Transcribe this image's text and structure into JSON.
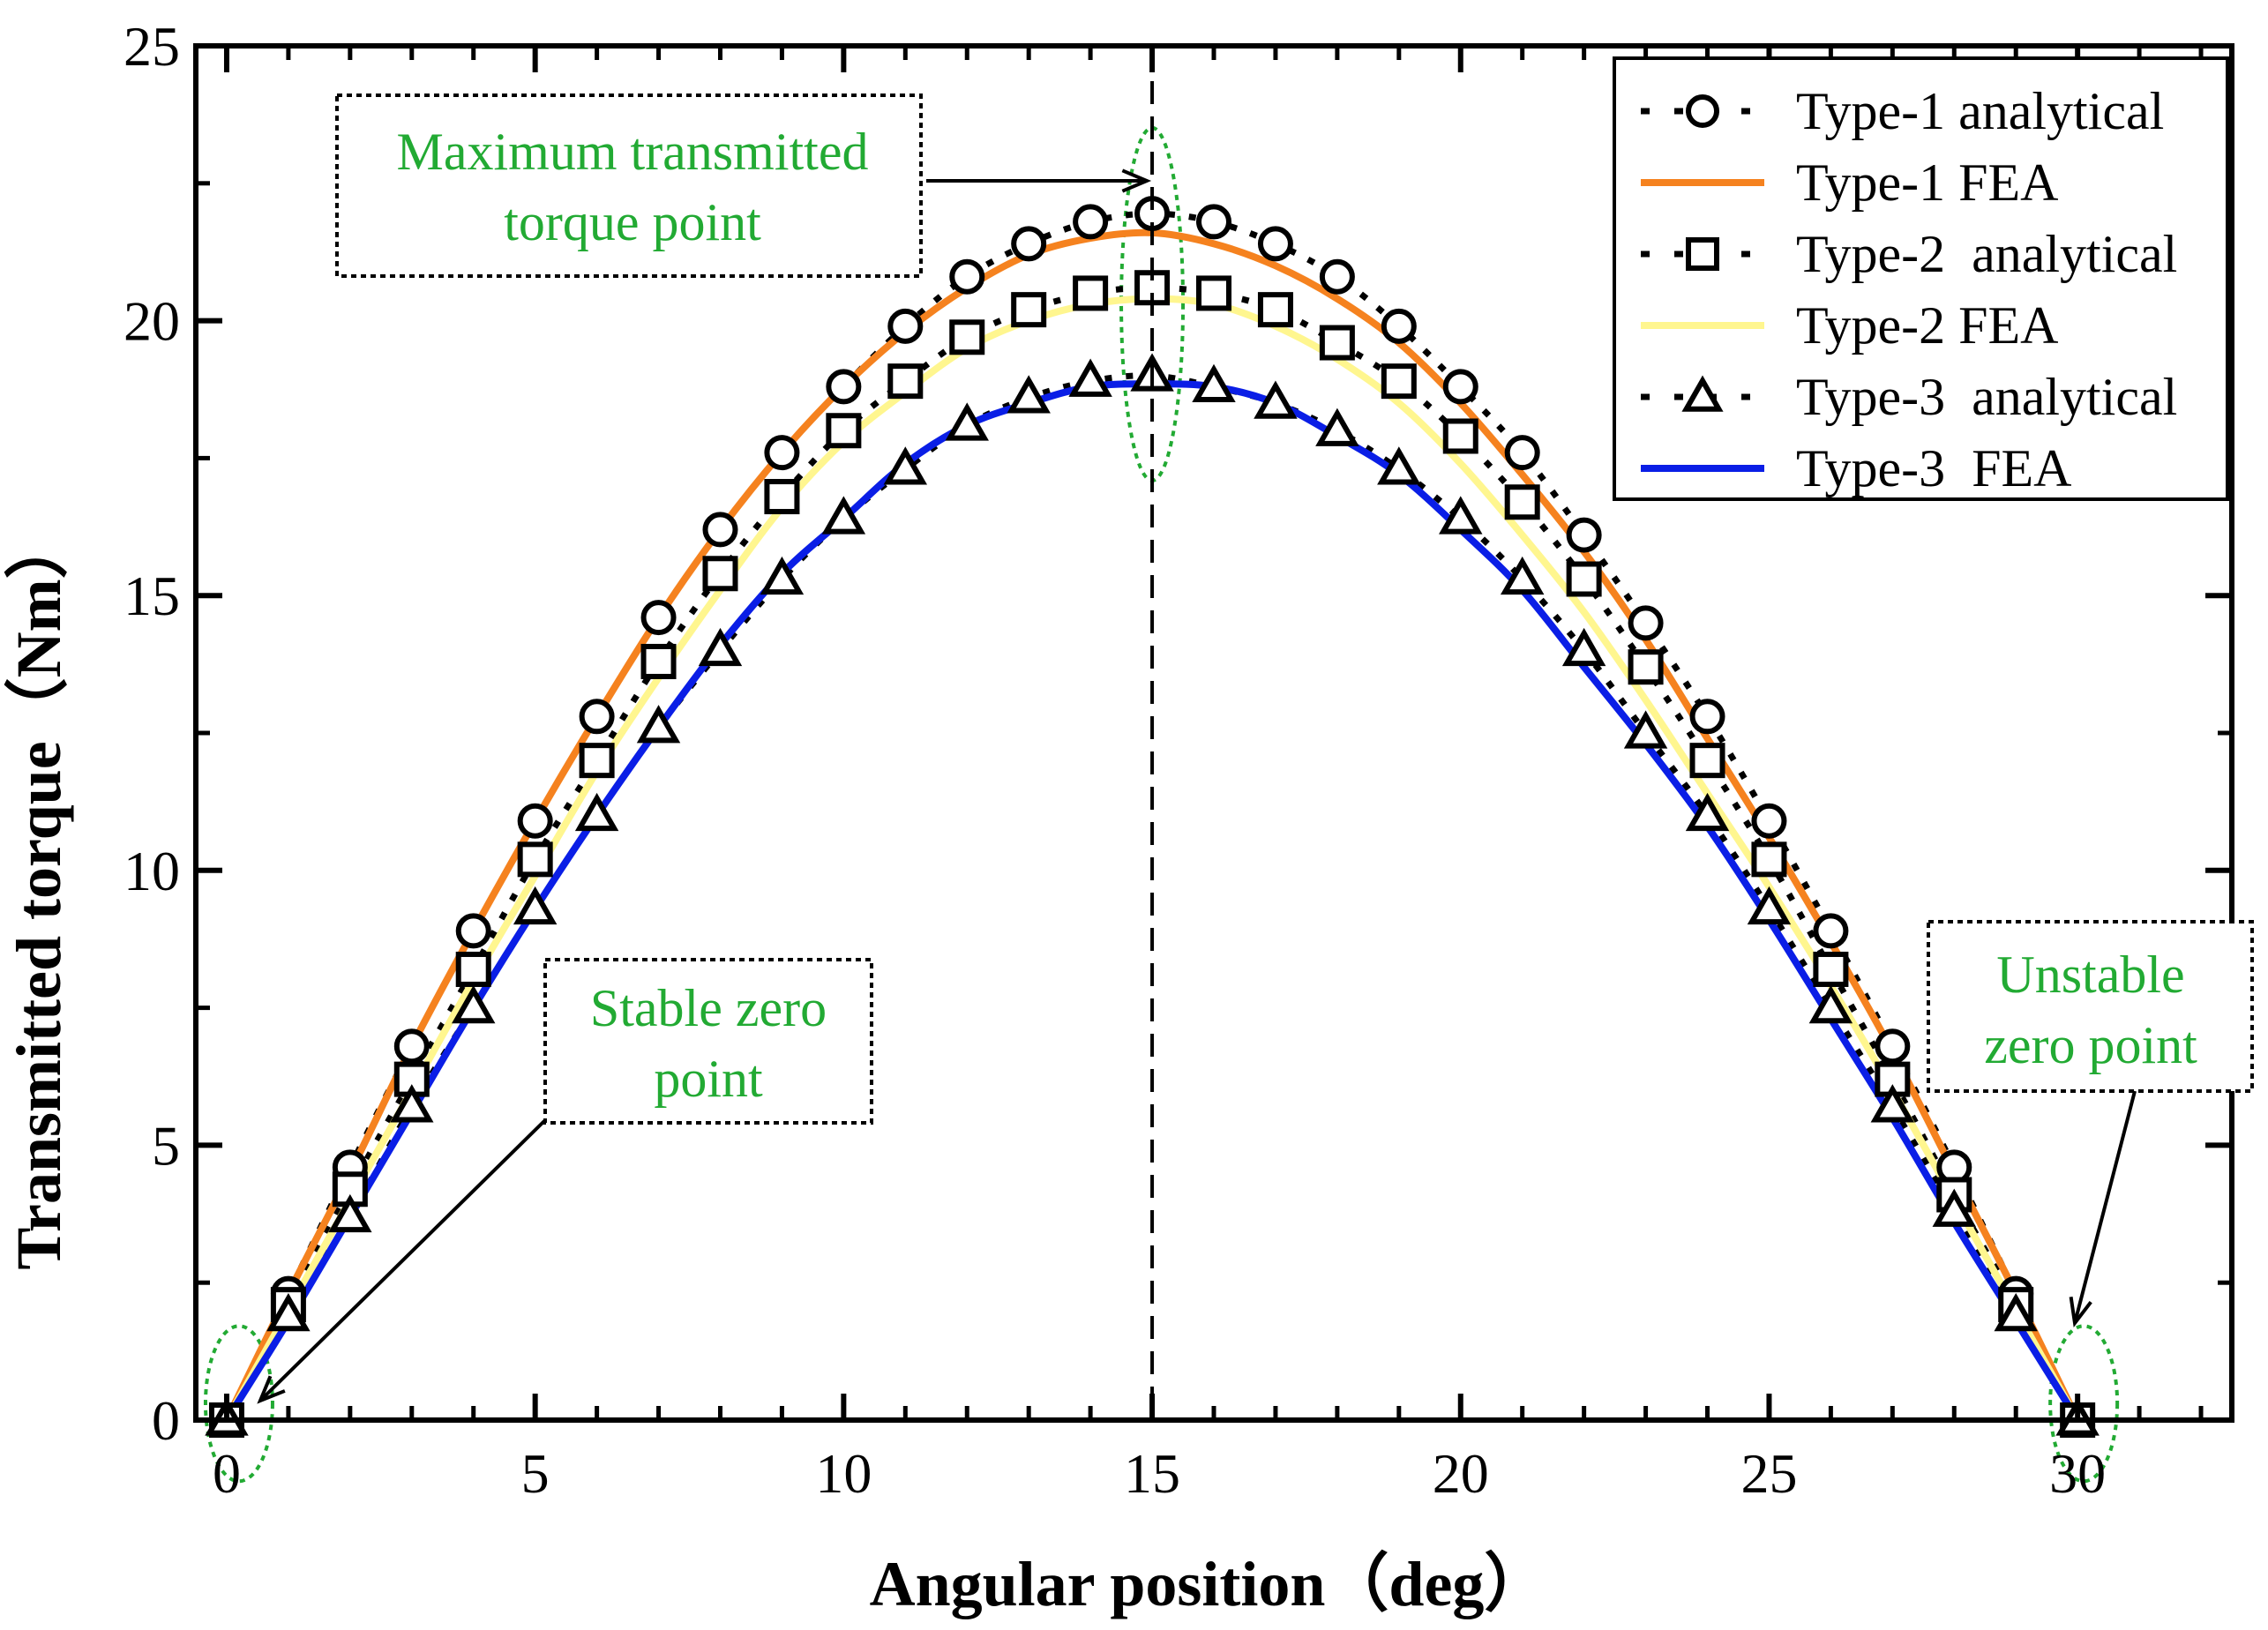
{
  "chart_data": {
    "type": "line",
    "title": "",
    "xlabel": "Angular position（deg）",
    "ylabel": "Transmitted torque（Nm）",
    "xlim": [
      -0.5,
      32.5
    ],
    "ylim": [
      0,
      25
    ],
    "xticks": [
      0,
      5,
      10,
      15,
      20,
      25,
      30
    ],
    "yticks": [
      0,
      5,
      10,
      15,
      20,
      25
    ],
    "grid": false,
    "legend_position": "top-right",
    "reference_line": {
      "x": 15,
      "style": "dashed"
    },
    "series": [
      {
        "name": "Type-1 analytical",
        "kind": "markers",
        "marker": "circle",
        "color": "#000000",
        "x": [
          0,
          1,
          2,
          3,
          4,
          5,
          6,
          7,
          8,
          9,
          10,
          11,
          12,
          13,
          14,
          15,
          16,
          17,
          18,
          19,
          20,
          21,
          22,
          23,
          24,
          25,
          26,
          27,
          28,
          29,
          30
        ],
        "y": [
          0,
          2.3,
          4.6,
          6.8,
          8.9,
          10.9,
          12.8,
          14.6,
          16.2,
          17.6,
          18.8,
          19.9,
          20.8,
          21.4,
          21.8,
          21.95,
          21.8,
          21.4,
          20.8,
          19.9,
          18.8,
          17.6,
          16.1,
          14.5,
          12.8,
          10.9,
          8.9,
          6.8,
          4.6,
          2.3,
          0
        ]
      },
      {
        "name": "Type-1 FEA",
        "kind": "line",
        "color": "#F5821F",
        "x": [
          0,
          1,
          2,
          3,
          4,
          5,
          6,
          7,
          8,
          9,
          10,
          11,
          12,
          13,
          14,
          15,
          16,
          17,
          18,
          19,
          20,
          21,
          22,
          23,
          24,
          25,
          26,
          27,
          28,
          29,
          30
        ],
        "y": [
          0,
          2.3,
          4.5,
          6.8,
          8.9,
          10.9,
          12.8,
          14.6,
          16.2,
          17.6,
          18.8,
          19.8,
          20.6,
          21.2,
          21.5,
          21.6,
          21.4,
          21.0,
          20.4,
          19.6,
          18.5,
          17.2,
          15.8,
          14.2,
          12.4,
          10.6,
          8.7,
          6.7,
          4.5,
          2.3,
          0
        ]
      },
      {
        "name": "Type-2  analytical",
        "kind": "markers",
        "marker": "square",
        "color": "#000000",
        "x": [
          0,
          1,
          2,
          3,
          4,
          5,
          6,
          7,
          8,
          9,
          10,
          11,
          12,
          13,
          14,
          15,
          16,
          17,
          18,
          19,
          20,
          21,
          22,
          23,
          24,
          25,
          26,
          27,
          28,
          29,
          30
        ],
        "y": [
          0,
          2.1,
          4.2,
          6.2,
          8.2,
          10.2,
          12.0,
          13.8,
          15.4,
          16.8,
          18.0,
          18.9,
          19.7,
          20.2,
          20.5,
          20.6,
          20.5,
          20.2,
          19.6,
          18.9,
          17.9,
          16.7,
          15.3,
          13.7,
          12.0,
          10.2,
          8.2,
          6.2,
          4.1,
          2.1,
          0
        ]
      },
      {
        "name": "Type-2 FEA",
        "kind": "line",
        "color": "#FFF68F",
        "x": [
          0,
          1,
          2,
          3,
          4,
          5,
          6,
          7,
          8,
          9,
          10,
          11,
          12,
          13,
          14,
          15,
          16,
          17,
          18,
          19,
          20,
          21,
          22,
          23,
          24,
          25,
          26,
          27,
          28,
          29,
          30
        ],
        "y": [
          0,
          2.0,
          4.0,
          6.0,
          8.0,
          9.9,
          11.8,
          13.5,
          15.1,
          16.6,
          17.8,
          18.7,
          19.5,
          20.0,
          20.3,
          20.4,
          20.3,
          19.9,
          19.3,
          18.5,
          17.4,
          16.1,
          14.7,
          13.1,
          11.4,
          9.7,
          7.9,
          6.0,
          4.0,
          2.0,
          0
        ]
      },
      {
        "name": "Type-3  analytical",
        "kind": "markers",
        "marker": "triangle",
        "color": "#000000",
        "x": [
          0,
          1,
          2,
          3,
          4,
          5,
          6,
          7,
          8,
          9,
          10,
          11,
          12,
          13,
          14,
          15,
          16,
          17,
          18,
          19,
          20,
          21,
          22,
          23,
          24,
          25,
          26,
          27,
          28,
          29,
          30
        ],
        "y": [
          0,
          1.9,
          3.7,
          5.7,
          7.5,
          9.3,
          11.0,
          12.6,
          14.0,
          15.3,
          16.4,
          17.3,
          18.1,
          18.6,
          18.9,
          19.0,
          18.8,
          18.5,
          18.0,
          17.3,
          16.4,
          15.3,
          14.0,
          12.5,
          11.0,
          9.3,
          7.5,
          5.7,
          3.8,
          1.9,
          0
        ]
      },
      {
        "name": "Type-3  FEA",
        "kind": "line",
        "color": "#0A1EE6",
        "x": [
          0,
          1,
          2,
          3,
          4,
          5,
          6,
          7,
          8,
          9,
          10,
          11,
          12,
          13,
          14,
          15,
          16,
          17,
          18,
          19,
          20,
          21,
          22,
          23,
          24,
          25,
          26,
          27,
          28,
          29,
          30
        ],
        "y": [
          0,
          1.8,
          3.7,
          5.6,
          7.5,
          9.3,
          11.0,
          12.6,
          14.1,
          15.4,
          16.4,
          17.4,
          18.1,
          18.5,
          18.8,
          18.85,
          18.8,
          18.5,
          17.9,
          17.2,
          16.2,
          15.1,
          13.7,
          12.3,
          10.8,
          9.1,
          7.3,
          5.5,
          3.6,
          1.8,
          0
        ]
      }
    ],
    "annotations": [
      {
        "text_lines": [
          "Maximum transmitted",
          "torque point"
        ],
        "color": "#22AA33"
      },
      {
        "text_lines": [
          "Stable zero",
          "point"
        ],
        "color": "#22AA33"
      },
      {
        "text_lines": [
          "Unstable",
          "zero point"
        ],
        "color": "#22AA33"
      }
    ]
  }
}
